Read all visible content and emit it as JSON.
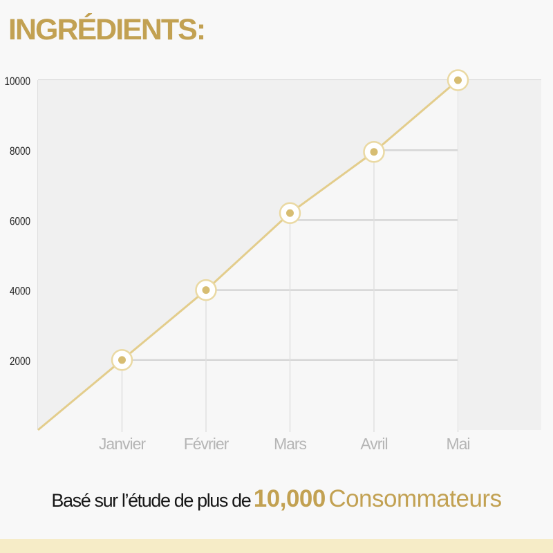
{
  "page": {
    "title": "INGRÉDIENTS:",
    "footer": {
      "prefix": "Basé sur l’étude de plus de",
      "number": "10,000",
      "suffix": "Consommateurs"
    }
  },
  "colors": {
    "accent_gold": "#c2a152",
    "line_color": "#e3cd8c",
    "footer_band": "#f6ecc7"
  },
  "chart_data": {
    "type": "line",
    "title": "",
    "xlabel": "",
    "ylabel": "",
    "categories": [
      "Janvier",
      "Février",
      "Mars",
      "Avril",
      "Mai"
    ],
    "series": [
      {
        "values": [
          2000,
          4000,
          6200,
          7950,
          10000
        ]
      }
    ],
    "line_start": 0,
    "yticks": [
      2000,
      4000,
      6000,
      8000,
      10000
    ],
    "ylim": [
      0,
      10000
    ],
    "grid": true,
    "legend": "none"
  }
}
